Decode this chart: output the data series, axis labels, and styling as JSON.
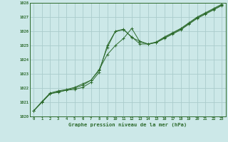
{
  "xlabel": "Graphe pression niveau de la mer (hPa)",
  "bg_color": "#cce8e8",
  "grid_color": "#aacccc",
  "line_color": "#2d6b2d",
  "xlim": [
    -0.5,
    23.5
  ],
  "ylim": [
    1020,
    1028
  ],
  "yticks": [
    1020,
    1021,
    1022,
    1023,
    1024,
    1025,
    1026,
    1027,
    1028
  ],
  "xticks": [
    0,
    1,
    2,
    3,
    4,
    5,
    6,
    7,
    8,
    9,
    10,
    11,
    12,
    13,
    14,
    15,
    16,
    17,
    18,
    19,
    20,
    21,
    22,
    23
  ],
  "line1": [
    1020.4,
    1021.0,
    1021.6,
    1021.7,
    1021.85,
    1021.9,
    1022.05,
    1022.4,
    1023.1,
    1025.0,
    1026.0,
    1026.15,
    1025.55,
    1025.3,
    1025.1,
    1025.2,
    1025.5,
    1025.8,
    1026.1,
    1026.5,
    1026.9,
    1027.2,
    1027.5,
    1027.8
  ],
  "line2": [
    1020.4,
    1021.0,
    1021.6,
    1021.75,
    1021.85,
    1022.0,
    1022.2,
    1022.55,
    1023.25,
    1024.85,
    1026.0,
    1026.1,
    1025.6,
    1025.1,
    1025.1,
    1025.2,
    1025.55,
    1025.85,
    1026.15,
    1026.55,
    1026.95,
    1027.25,
    1027.55,
    1027.85
  ],
  "line3": [
    1020.4,
    1021.05,
    1021.65,
    1021.8,
    1021.9,
    1022.05,
    1022.3,
    1022.55,
    1023.3,
    1024.35,
    1025.0,
    1025.5,
    1026.2,
    1025.25,
    1025.1,
    1025.25,
    1025.6,
    1025.9,
    1026.2,
    1026.6,
    1027.0,
    1027.3,
    1027.6,
    1027.9
  ]
}
